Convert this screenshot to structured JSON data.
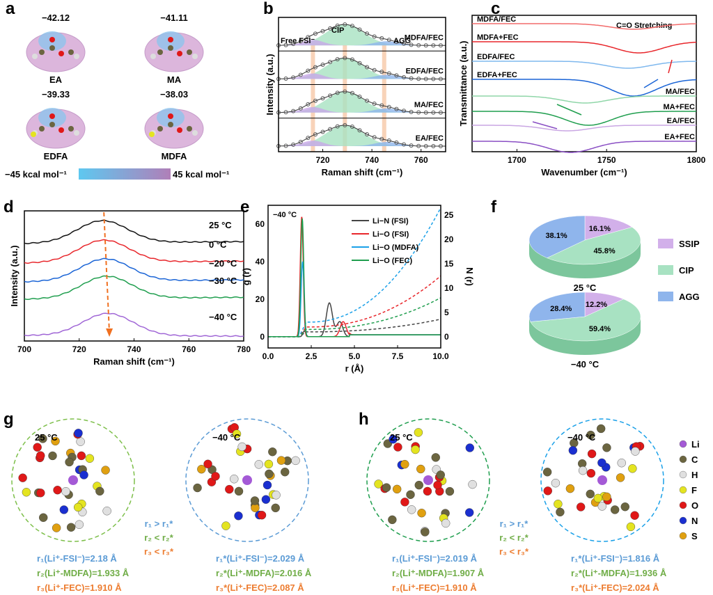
{
  "panels": {
    "a": "a",
    "b": "b",
    "c": "c",
    "d": "d",
    "e": "e",
    "f": "f",
    "g": "g",
    "h": "h"
  },
  "panel_a": {
    "molecules": [
      {
        "name": "EA",
        "value": "−42.12"
      },
      {
        "name": "MA",
        "value": "−41.11"
      },
      {
        "name": "EDFA",
        "value": "−39.33"
      },
      {
        "name": "MDFA",
        "value": "−38.03"
      }
    ],
    "colorbar_min": "−45 kcal mol⁻¹",
    "colorbar_max": "45 kcal mol⁻¹",
    "colorbar_colors": [
      "#5ec8f0",
      "#b07fb8"
    ]
  },
  "chart_data": [
    {
      "panel": "b",
      "type": "line",
      "xlabel": "Raman shift (cm⁻¹)",
      "ylabel": "Intensity (a.u.)",
      "xlim": [
        702,
        770
      ],
      "xticks": [
        720,
        740,
        760
      ],
      "annotations": [
        "Free FSI⁻",
        "CIP",
        "AGG"
      ],
      "marker_lines": [
        716,
        729,
        745
      ],
      "series": [
        {
          "name": "MDFA/FEC",
          "peak": 729
        },
        {
          "name": "EDFA/FEC",
          "peak": 729
        },
        {
          "name": "MA/FEC",
          "peak": 729
        },
        {
          "name": "EA/FEC",
          "peak": 729
        }
      ]
    },
    {
      "panel": "c",
      "type": "line",
      "xlabel": "Wavenumber (cm⁻¹)",
      "ylabel": "Transmittance (a.u.)",
      "xlim": [
        1675,
        1800
      ],
      "xticks": [
        1700,
        1750,
        1800
      ],
      "annotation": "C=O Stretching",
      "series": [
        {
          "name": "MDFA/FEC",
          "color": "#f26b6b",
          "dip": 1765
        },
        {
          "name": "MDFA+FEC",
          "color": "#e8262b",
          "dip": 1768
        },
        {
          "name": "EDFA/FEC",
          "color": "#7fb8ee",
          "dip": 1762
        },
        {
          "name": "EDFA+FEC",
          "color": "#1a64d6",
          "dip": 1765
        },
        {
          "name": "MA/FEC",
          "color": "#8fd6a8",
          "dip": 1738
        },
        {
          "name": "MA+FEC",
          "color": "#1f9e4e",
          "dip": 1740
        },
        {
          "name": "EA/FEC",
          "color": "#c9a6e3",
          "dip": 1728
        },
        {
          "name": "EA+FEC",
          "color": "#8a4fc4",
          "dip": 1730
        }
      ]
    },
    {
      "panel": "d",
      "type": "line",
      "xlabel": "Raman shift (cm⁻¹)",
      "ylabel": "Intensity (a.u.)",
      "xlim": [
        700,
        780
      ],
      "xticks": [
        700,
        720,
        740,
        760,
        780
      ],
      "series": [
        {
          "name": "25 °C",
          "color": "#111111",
          "peak": 728.5
        },
        {
          "name": "0 °C",
          "color": "#e8262b",
          "peak": 729
        },
        {
          "name": "−20 °C",
          "color": "#1a64d6",
          "peak": 729.5
        },
        {
          "name": "−30 °C",
          "color": "#1f9e4e",
          "peak": 730
        },
        {
          "name": "−40 °C",
          "color": "#a066d6",
          "peak": 730.5
        }
      ]
    },
    {
      "panel": "e",
      "type": "line",
      "title": "−40 °C",
      "xlabel": "r (Å)",
      "ylabel": "g (r)",
      "y2label": "N (r)",
      "xlim": [
        0,
        10
      ],
      "ylim": [
        -6,
        70
      ],
      "y2lim": [
        -2.3,
        27
      ],
      "xticks": [
        0.0,
        2.5,
        5.0,
        7.5,
        10.0
      ],
      "yticks": [
        0,
        20,
        40,
        60
      ],
      "y2ticks": [
        0,
        5,
        10,
        15,
        20,
        25
      ],
      "series": [
        {
          "name": "Li−N (FSI)",
          "color": "#444444",
          "peaks": [
            [
              2.1,
              3
            ],
            [
              3.55,
              18
            ],
            [
              4.15,
              8
            ]
          ],
          "N_end": 2.6
        },
        {
          "name": "Li−O (FSI)",
          "color": "#e8262b",
          "peaks": [
            [
              1.95,
              64
            ],
            [
              4.35,
              8
            ]
          ],
          "N_end": 10.5
        },
        {
          "name": "Li−O (MDFA)",
          "color": "#1aa0e8",
          "peaks": [
            [
              2.0,
              40
            ]
          ],
          "N_end": 23.5
        },
        {
          "name": "Li−O (FEC)",
          "color": "#1f9e4e",
          "peaks": [
            [
              1.98,
              63
            ]
          ],
          "N_end": 6.5
        }
      ]
    },
    {
      "panel": "f",
      "type": "pie",
      "legend": [
        "SSIP",
        "CIP",
        "AGG"
      ],
      "colors": [
        "#d2b0ea",
        "#a8e2c2",
        "#8fb5ec"
      ],
      "pies": [
        {
          "label": "25 °C",
          "values": [
            16.1,
            45.8,
            38.1
          ],
          "labels": [
            "16.1%",
            "45.8%",
            "38.1%"
          ]
        },
        {
          "label": "−40 °C",
          "values": [
            12.2,
            59.4,
            28.4
          ],
          "labels": [
            "12.2%",
            "59.4%",
            "28.4%"
          ]
        }
      ]
    }
  ],
  "panel_g": {
    "left_temp": "25 °C",
    "right_temp": "−40 °C",
    "compare": [
      "r₁ > r₁*",
      "r₂ < r₂*",
      "r₃ < r₃*"
    ],
    "left": [
      "r₁(Li⁺-FSI⁻)=2.18 Å",
      "r₂(Li⁺-MDFA)=1.933 Å",
      "r₃(Li⁺-FEC)=1.910 Å"
    ],
    "right": [
      "r₁*(Li⁺-FSI⁻)=2.029 Å",
      "r₂*(Li⁺-MDFA)=2.016 Å",
      "r₃*(Li⁺-FEC)=2.087 Å"
    ]
  },
  "panel_h": {
    "left_temp": "25 °C",
    "right_temp": "−40 °C",
    "compare": [
      "r₁ > r₁*",
      "r₂ < r₂*",
      "r₃ < r₃*"
    ],
    "left": [
      "r₁(Li⁺-FSI⁻)=2.019 Å",
      "r₂(Li⁺-MDFA)=1.907 Å",
      "r₃(Li⁺-FEC)=1.910 Å"
    ],
    "right": [
      "r₁*(Li⁺-FSI⁻)=1.816 Å",
      "r₂*(Li⁺-MDFA)=1.936 Å",
      "r₃*(Li⁺-FEC)=2.024 Å"
    ]
  },
  "atom_legend": [
    {
      "el": "Li",
      "color": "#a45ad6"
    },
    {
      "el": "C",
      "color": "#6b6540"
    },
    {
      "el": "H",
      "color": "#e0e0e0"
    },
    {
      "el": "F",
      "color": "#e4e420"
    },
    {
      "el": "O",
      "color": "#e01818"
    },
    {
      "el": "N",
      "color": "#1a2fd0"
    },
    {
      "el": "S",
      "color": "#e0a010"
    }
  ]
}
